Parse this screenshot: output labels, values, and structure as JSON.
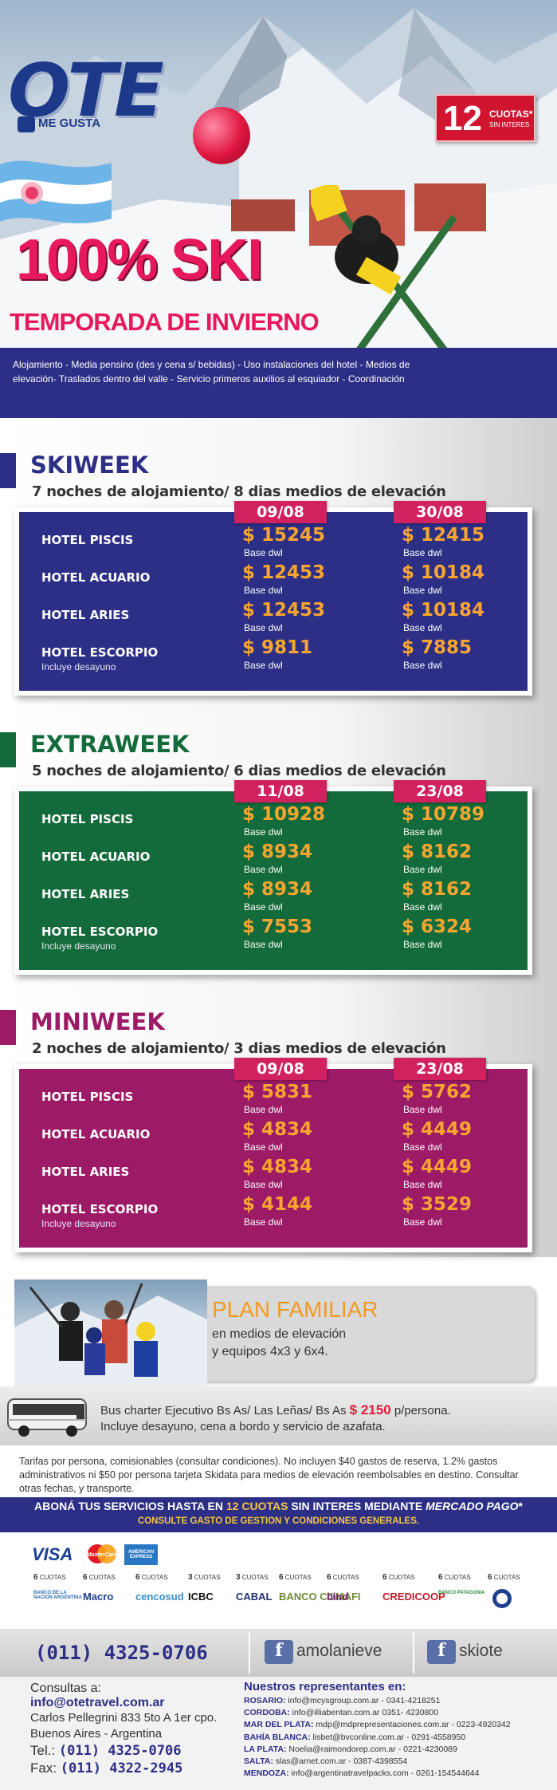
{
  "hero": {
    "logo_text": "OTE",
    "logo_like": "ME GUSTA",
    "cuotas_number": "12",
    "cuotas_line1": "CUOTAS*",
    "cuotas_line2": "SIN INTERES",
    "title": "100% SKI",
    "subtitle": "TEMPORADA DE INVIERNO",
    "description": "Alojamiento - Media pensino (des y cena s/ bebidas) - Uso instalaciones del hotel - Medios de elevación- Traslados dentro del valle - Servicio primeros auxilios al esquiador - Coordinación"
  },
  "sections": [
    {
      "name": "SKIWEEK",
      "subtitle": "7 noches de alojamiento/ 8 dias medios de elevación",
      "color": "#2d2f86",
      "dates": [
        "09/08",
        "30/08"
      ],
      "rows": [
        {
          "hotel": "HOTEL PISCIS",
          "note": "",
          "prices": [
            "$ 15245",
            "$ 12415"
          ]
        },
        {
          "hotel": "HOTEL ACUARIO",
          "note": "",
          "prices": [
            "$ 12453",
            "$ 10184"
          ]
        },
        {
          "hotel": "HOTEL ARIES",
          "note": "",
          "prices": [
            "$ 12453",
            "$ 10184"
          ]
        },
        {
          "hotel": "HOTEL ESCORPIO",
          "note": "Incluye desayuno",
          "prices": [
            "$ 9811",
            "$ 7885"
          ]
        }
      ]
    },
    {
      "name": "EXTRAWEEK",
      "subtitle": "5 noches de alojamiento/ 6 dias medios de elevación",
      "color": "#136a3a",
      "dates": [
        "11/08",
        "23/08"
      ],
      "rows": [
        {
          "hotel": "HOTEL PISCIS",
          "note": "",
          "prices": [
            "$ 10928",
            "$ 10789"
          ]
        },
        {
          "hotel": "HOTEL ACUARIO",
          "note": "",
          "prices": [
            "$ 8934",
            "$ 8162"
          ]
        },
        {
          "hotel": "HOTEL ARIES",
          "note": "",
          "prices": [
            "$ 8934",
            "$ 8162"
          ]
        },
        {
          "hotel": "HOTEL ESCORPIO",
          "note": "Incluye desayuno",
          "prices": [
            "$ 7553",
            "$ 6324"
          ]
        }
      ]
    },
    {
      "name": "MINIWEEK",
      "subtitle": "2 noches de alojamiento/ 3 dias medios de elevación",
      "color": "#9c1a66",
      "dates": [
        "09/08",
        "23/08"
      ],
      "rows": [
        {
          "hotel": "HOTEL PISCIS",
          "note": "",
          "prices": [
            "$ 5831",
            "$ 5762"
          ]
        },
        {
          "hotel": "HOTEL ACUARIO",
          "note": "",
          "prices": [
            "$ 4834",
            "$ 4449"
          ]
        },
        {
          "hotel": "HOTEL ARIES",
          "note": "",
          "prices": [
            "$ 4834",
            "$ 4449"
          ]
        },
        {
          "hotel": "HOTEL ESCORPIO",
          "note": "Incluye desayuno",
          "prices": [
            "$ 4144",
            "$ 3529"
          ]
        }
      ]
    }
  ],
  "base_label": "Base dwl",
  "plan": {
    "title": "PLAN FAMILIAR",
    "line1": "en medios de elevación",
    "line2": "y equipos 4x3 y 6x4."
  },
  "bus": {
    "line1_a": "Bus charter Ejecutivo Bs As/ Las Leñas/ Bs As ",
    "line1_price": "$ 2150",
    "line1_b": " p/persona.",
    "line2": "Incluye desayuno, cena a bordo y servicio de azafata."
  },
  "tarifas": "Tarifas por persona, comisionables (consultar condiciones). No incluyen $40 gastos de reserva, 1.2% gastos administrativos ni $50 por persona tarjeta Skidata para medios de elevación reembolsables en destino. Consultar otras fechas, y transporte.",
  "mercado_pago": {
    "a": "ABONÁ TUS SERVICIOS HASTA EN ",
    "b": "12 CUOTAS",
    "c": " SIN INTERES MEDIANTE ",
    "d": "MERCADO PAGO",
    "e": "*",
    "line2": "CONSULTE GASTO DE GESTION Y CONDICIONES GENERALES."
  },
  "cards": {
    "visa": "VISA",
    "mastercard": "MasterCard",
    "amex": "AMERICAN EXPRESS"
  },
  "banks": [
    {
      "cuotas": "6",
      "label": "CUOTAS",
      "name": "BANCO DE LA NACION ARGENTINA",
      "color": "#2d6db4"
    },
    {
      "cuotas": "6",
      "label": "CUOTAS",
      "name": "Macro",
      "color": "#1f3f8f"
    },
    {
      "cuotas": "6",
      "label": "CUOTAS",
      "name": "cencosud",
      "color": "#3a8ecf"
    },
    {
      "cuotas": "3",
      "label": "CUOTAS",
      "name": "ICBC",
      "color": "#111111"
    },
    {
      "cuotas": "3",
      "label": "CUOTAS",
      "name": "CABAL",
      "color": "#1f2f6f"
    },
    {
      "cuotas": "6",
      "label": "CUOTAS",
      "name": "BANCO COMAFI",
      "color": "#6e8a3a"
    },
    {
      "cuotas": "6",
      "label": "CUOTAS",
      "name": "bind",
      "color": "#7a1f6e"
    },
    {
      "cuotas": "6",
      "label": "CUOTAS",
      "name": "CREDICOOP",
      "color": "#c41a2a"
    },
    {
      "cuotas": "6",
      "label": "CUOTAS",
      "name": "BANCO PATAGONIA",
      "color": "#2a8a3a"
    },
    {
      "cuotas": "6",
      "label": "CUOTAS",
      "name": "",
      "color": "#1f3f8f"
    }
  ],
  "contact": {
    "phone": "(011) 4325-0706",
    "facebook1": "amolanieve",
    "facebook2": "skiote",
    "consultas_label": "Consultas a: ",
    "email": "info@otetravel.com.ar",
    "address1": "Carlos Pellegrini 833 5to A 1er cpo.",
    "address2": "Buenos Aires - Argentina",
    "tel_label": "Tel.: ",
    "tel": "(011) 4325-0706",
    "fax_label": "Fax: ",
    "fax": "(011) 4322-2945",
    "reps_title": "Nuestros representantes en:",
    "reps": [
      {
        "city": "ROSARIO:",
        "info": " info@mcysgroup.com.ar - 0341-4218251"
      },
      {
        "city": "CORDOBA:",
        "info": " info@illiabentan.com.ar 0351- 4230800"
      },
      {
        "city": "MAR DEL PLATA:",
        "info": " mdp@mdprepresentaciones.com.ar - 0223-4920342"
      },
      {
        "city": "BAHÍA BLANCA:",
        "info": " lisbet@bvconline.com.ar - 0291-4558950"
      },
      {
        "city": "LA PLATA:",
        "info": " Noelia@raimondorep.com.ar - 0221-4230089"
      },
      {
        "city": "SALTA:",
        "info": " slas@arnet.com.ar - 0387-4398554"
      },
      {
        "city": "MENDOZA:",
        "info": " info@argentinatravelpacks.com - 0261-154544644"
      }
    ]
  }
}
